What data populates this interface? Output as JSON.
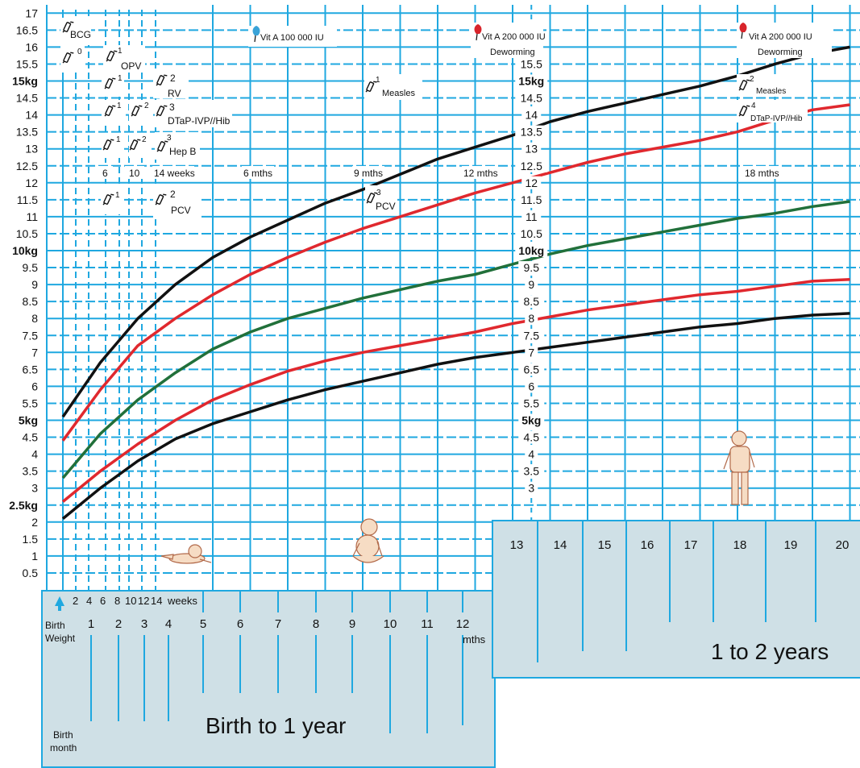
{
  "colors": {
    "grid": "#1fa8e0",
    "panel": "#cfe0e6",
    "black_curve": "#111111",
    "red_curve": "#e0282e",
    "green_curve": "#21703a",
    "vitA_blue": "#3aa3d8",
    "vitA_red": "#d8242b"
  },
  "chart_data": {
    "type": "line",
    "title": "",
    "xlabel": "",
    "ylabel": "",
    "ylim": [
      0,
      17
    ],
    "xlim_months": [
      0,
      20
    ],
    "y_ticks": [
      "0.5",
      "1",
      "1.5",
      "2",
      "2.5kg",
      "3",
      "3.5",
      "4",
      "4.5",
      "5kg",
      "5.5",
      "6",
      "6.5",
      "7",
      "7.5",
      "8",
      "8.5",
      "9",
      "9.5",
      "10kg",
      "10.5",
      "11",
      "11.5",
      "12",
      "12.5",
      "13",
      "13.5",
      "14",
      "14.5",
      "15kg",
      "15.5",
      "16",
      "16.5",
      "17"
    ],
    "mid_y_ticks": [
      "3",
      "3.5",
      "4",
      "4.5",
      "5kg",
      "5.5",
      "6",
      "6.5",
      "7",
      "7.5",
      "8",
      "8.5",
      "9",
      "9.5",
      "10kg",
      "10.5",
      "11",
      "11.5",
      "12",
      "12.5",
      "13",
      "13.5",
      "14",
      "14.5",
      "15kg",
      "15.5"
    ],
    "series": [
      {
        "color_key": "black_curve",
        "points": [
          [
            0,
            5.1
          ],
          [
            1,
            6.7
          ],
          [
            2,
            8.0
          ],
          [
            3,
            9.0
          ],
          [
            4,
            9.8
          ],
          [
            5,
            10.4
          ],
          [
            6,
            10.9
          ],
          [
            7,
            11.4
          ],
          [
            8,
            11.8
          ],
          [
            9,
            12.25
          ],
          [
            10,
            12.7
          ],
          [
            11,
            13.05
          ],
          [
            12,
            13.4
          ],
          [
            13,
            13.8
          ],
          [
            14,
            14.1
          ],
          [
            15,
            14.35
          ],
          [
            16,
            14.6
          ],
          [
            17,
            14.85
          ],
          [
            18,
            15.15
          ],
          [
            19,
            15.5
          ],
          [
            20,
            15.8
          ],
          [
            21,
            16.0
          ]
        ]
      },
      {
        "color_key": "red_curve",
        "points": [
          [
            0,
            4.4
          ],
          [
            1,
            5.9
          ],
          [
            2,
            7.2
          ],
          [
            3,
            8.0
          ],
          [
            4,
            8.7
          ],
          [
            5,
            9.3
          ],
          [
            6,
            9.8
          ],
          [
            7,
            10.25
          ],
          [
            8,
            10.65
          ],
          [
            9,
            11.0
          ],
          [
            10,
            11.35
          ],
          [
            11,
            11.7
          ],
          [
            12,
            12.0
          ],
          [
            13,
            12.3
          ],
          [
            14,
            12.6
          ],
          [
            15,
            12.85
          ],
          [
            16,
            13.05
          ],
          [
            17,
            13.25
          ],
          [
            18,
            13.5
          ],
          [
            19,
            13.85
          ],
          [
            20,
            14.15
          ],
          [
            21,
            14.3
          ]
        ]
      },
      {
        "color_key": "green_curve",
        "points": [
          [
            0,
            3.3
          ],
          [
            1,
            4.6
          ],
          [
            2,
            5.6
          ],
          [
            3,
            6.4
          ],
          [
            4,
            7.1
          ],
          [
            5,
            7.6
          ],
          [
            6,
            8.0
          ],
          [
            7,
            8.3
          ],
          [
            8,
            8.6
          ],
          [
            9,
            8.85
          ],
          [
            10,
            9.1
          ],
          [
            11,
            9.3
          ],
          [
            12,
            9.6
          ],
          [
            13,
            9.9
          ],
          [
            14,
            10.15
          ],
          [
            15,
            10.35
          ],
          [
            16,
            10.55
          ],
          [
            17,
            10.75
          ],
          [
            18,
            10.95
          ],
          [
            19,
            11.1
          ],
          [
            20,
            11.3
          ],
          [
            21,
            11.45
          ]
        ]
      },
      {
        "color_key": "red_curve",
        "points": [
          [
            0,
            2.6
          ],
          [
            1,
            3.5
          ],
          [
            2,
            4.3
          ],
          [
            3,
            5.0
          ],
          [
            4,
            5.6
          ],
          [
            5,
            6.05
          ],
          [
            6,
            6.45
          ],
          [
            7,
            6.75
          ],
          [
            8,
            7.0
          ],
          [
            9,
            7.2
          ],
          [
            10,
            7.4
          ],
          [
            11,
            7.6
          ],
          [
            12,
            7.85
          ],
          [
            13,
            8.05
          ],
          [
            14,
            8.25
          ],
          [
            15,
            8.4
          ],
          [
            16,
            8.55
          ],
          [
            17,
            8.7
          ],
          [
            18,
            8.8
          ],
          [
            19,
            8.95
          ],
          [
            20,
            9.1
          ],
          [
            21,
            9.15
          ]
        ]
      },
      {
        "color_key": "black_curve",
        "points": [
          [
            0,
            2.1
          ],
          [
            1,
            3.0
          ],
          [
            2,
            3.8
          ],
          [
            3,
            4.45
          ],
          [
            4,
            4.9
          ],
          [
            5,
            5.25
          ],
          [
            6,
            5.6
          ],
          [
            7,
            5.9
          ],
          [
            8,
            6.15
          ],
          [
            9,
            6.4
          ],
          [
            10,
            6.65
          ],
          [
            11,
            6.85
          ],
          [
            12,
            7.0
          ],
          [
            13,
            7.15
          ],
          [
            14,
            7.3
          ],
          [
            15,
            7.45
          ],
          [
            16,
            7.6
          ],
          [
            17,
            7.75
          ],
          [
            18,
            7.85
          ],
          [
            19,
            8.0
          ],
          [
            20,
            8.1
          ],
          [
            21,
            8.15
          ]
        ]
      }
    ]
  },
  "panel_left": {
    "week_labels": [
      "2",
      "4",
      "6",
      "8",
      "10",
      "12",
      "14",
      "weeks"
    ],
    "birth_weight": [
      "Birth",
      "Weight"
    ],
    "birth_month": [
      "Birth",
      "month"
    ],
    "month_labels": [
      "1",
      "2",
      "3",
      "4",
      "5",
      "6",
      "7",
      "8",
      "9",
      "10",
      "11",
      "12"
    ],
    "mths_label": "mths",
    "title": "Birth to 1 year"
  },
  "panel_right": {
    "month_labels": [
      "13",
      "14",
      "15",
      "16",
      "17",
      "18",
      "19",
      "20"
    ],
    "title": "1 to 2 years"
  },
  "age_labels": {
    "w6": "6",
    "w10": "10",
    "w14": "14 weeks",
    "m6": "6 mths",
    "m9": "9 mths",
    "m12": "12 mths",
    "m18": "18 mths"
  },
  "vaccines": {
    "bcg": "BCG",
    "opv": "OPV",
    "rv": "RV",
    "dtap": "DTaP-IVP//Hib",
    "hepb": "Hep B",
    "pcv": "PCV",
    "vita1": "Vit A 100 000 IU",
    "vita2": "Vit A 200 000 IU",
    "vita3": "Vit A 200 000 IU",
    "deworm1": "Deworming",
    "deworm2": "Deworming",
    "measles1": "Measles",
    "measles2": "Measles",
    "pcv3": "PCV",
    "dtap4": "DTaP-IVP//Hib",
    "n0": "0",
    "n1": "1",
    "n2": "2",
    "n3": "3",
    "n4": "4"
  },
  "icons": [
    "syringe-icon",
    "vitamin-drop-icon",
    "crawling-baby-icon",
    "sitting-baby-icon",
    "standing-toddler-icon",
    "arrow-up-icon"
  ]
}
